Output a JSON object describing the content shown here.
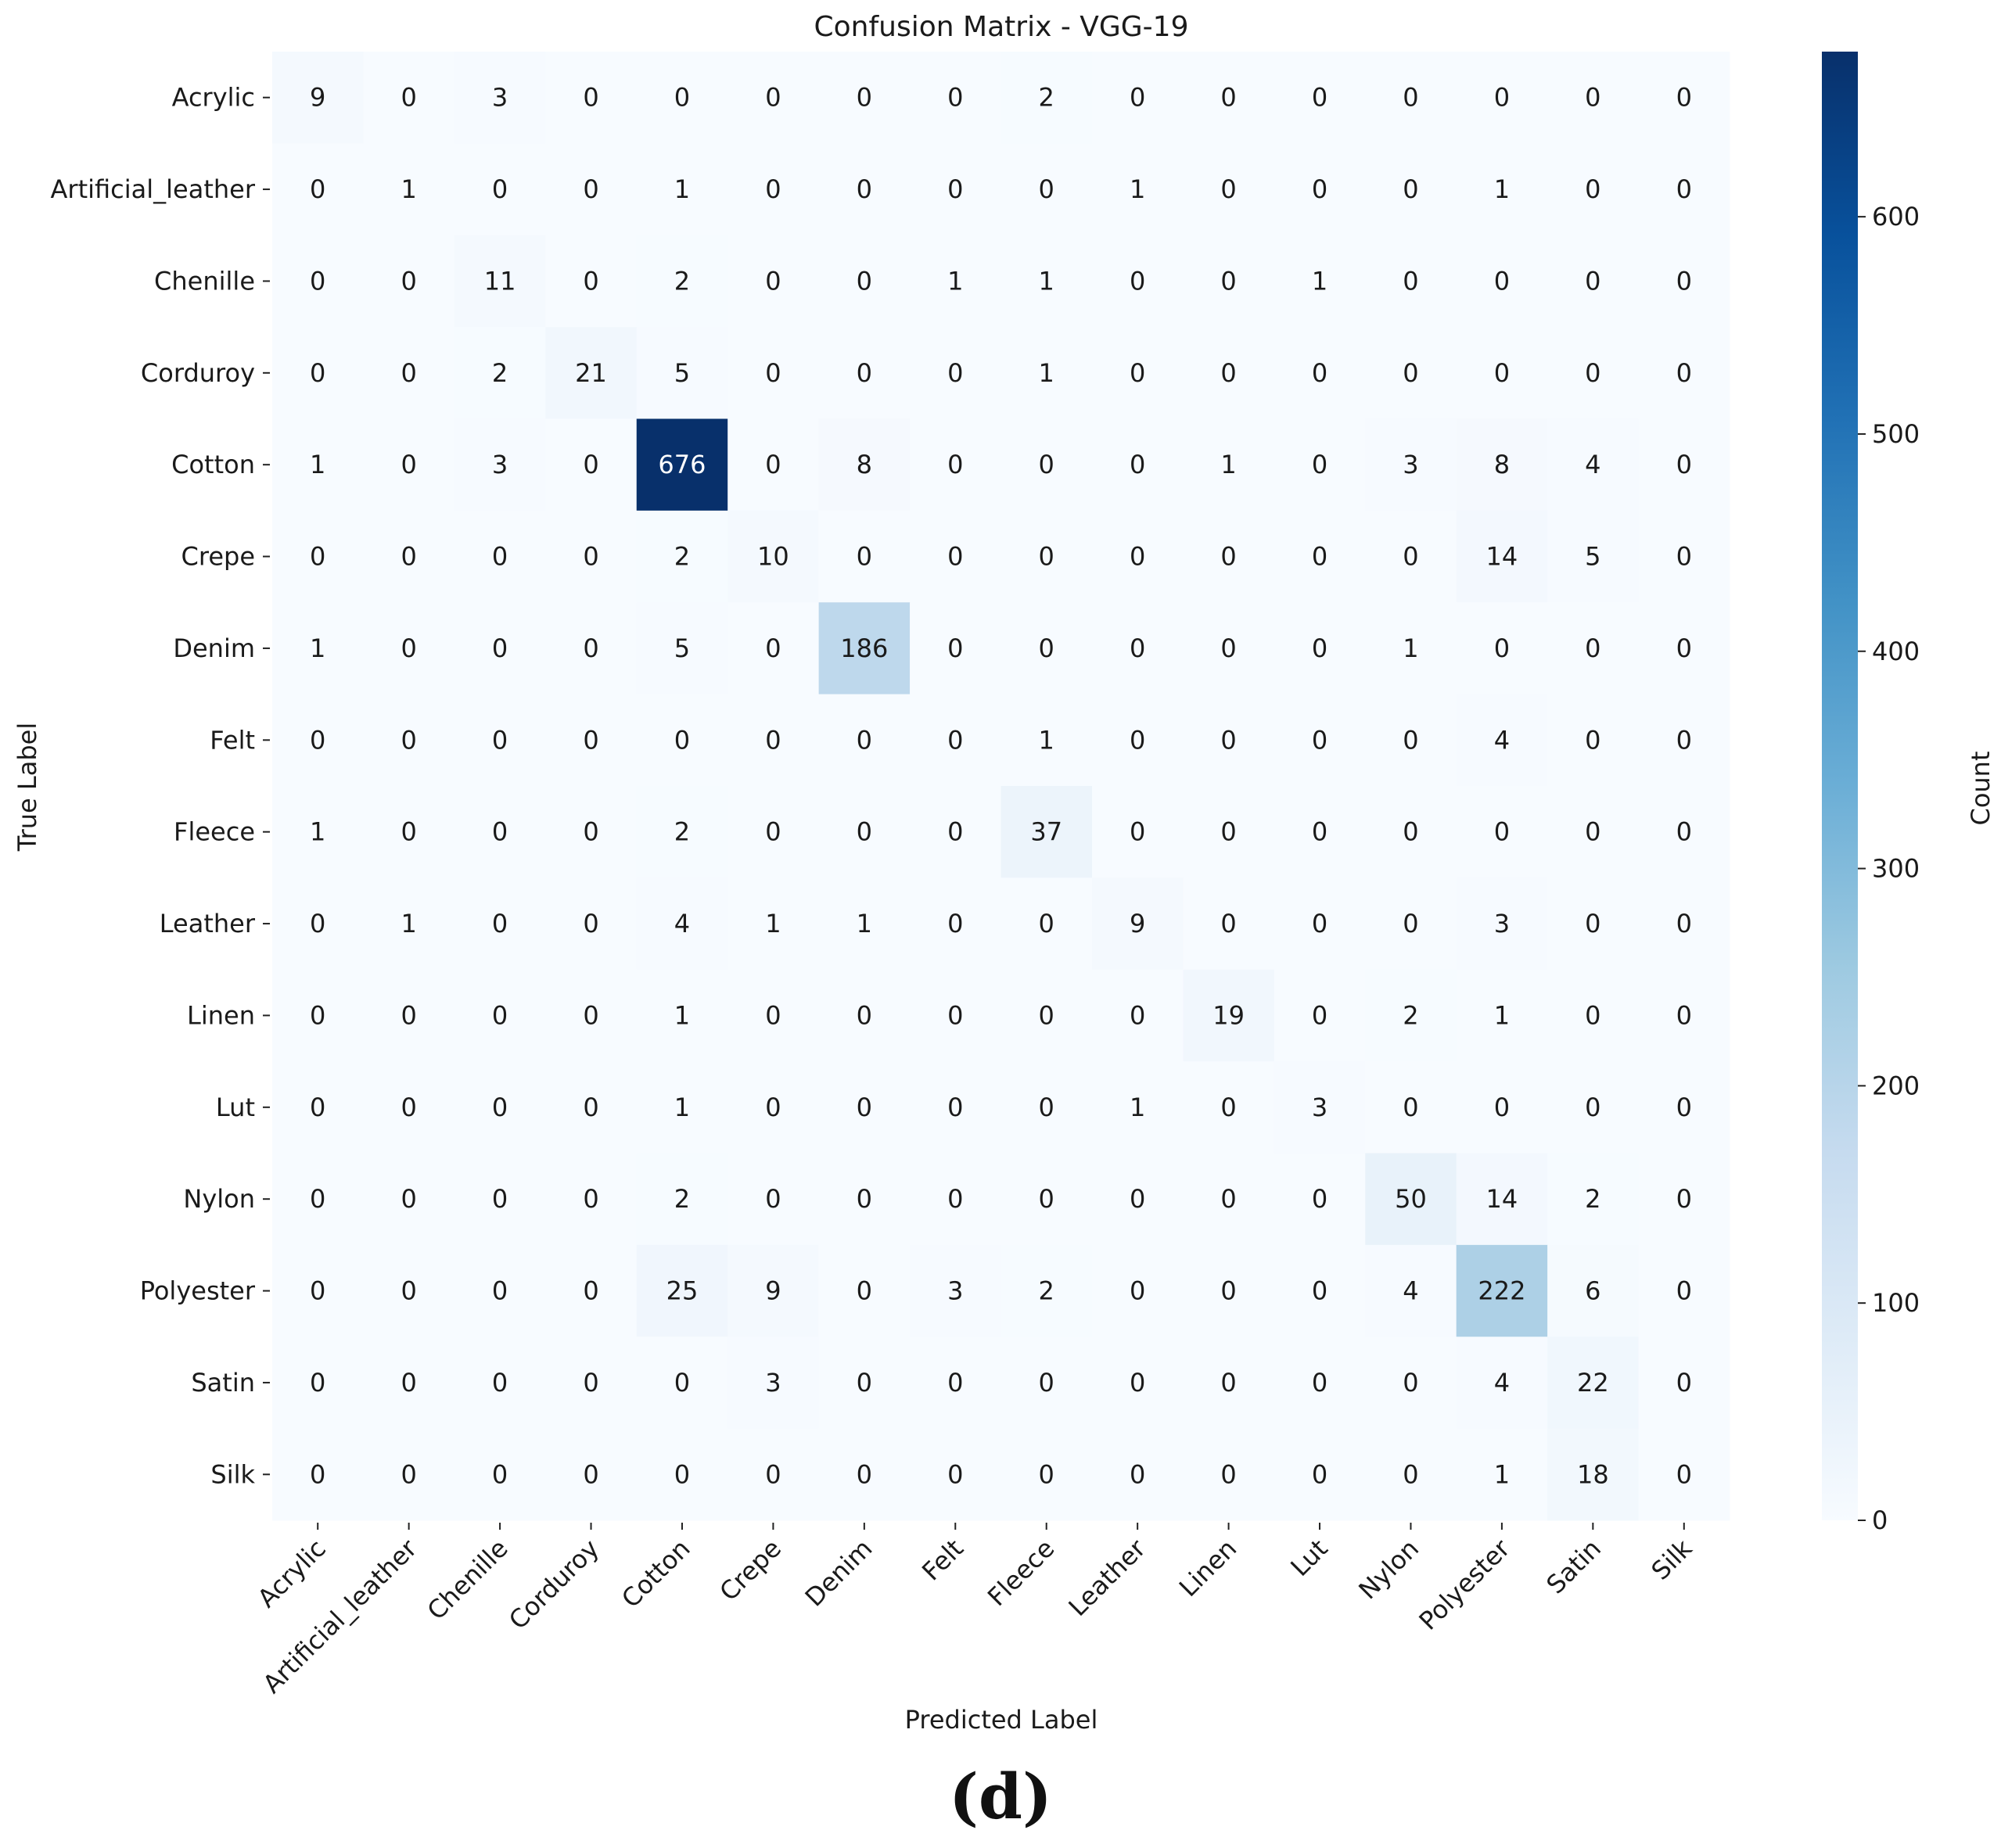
{
  "chart_data": {
    "type": "heatmap",
    "title": "Confusion Matrix - VGG-19",
    "xlabel": "Predicted Label",
    "ylabel": "True Label",
    "colorbar_label": "Count",
    "colorbar_ticks": [
      0,
      100,
      200,
      300,
      400,
      500,
      600
    ],
    "colormap": "Blues",
    "vmin": 0,
    "vmax": 676,
    "x_categories": [
      "Acrylic",
      "Artificial_leather",
      "Chenille",
      "Corduroy",
      "Cotton",
      "Crepe",
      "Denim",
      "Felt",
      "Fleece",
      "Leather",
      "Linen",
      "Lut",
      "Nylon",
      "Polyester",
      "Satin",
      "Silk"
    ],
    "y_categories": [
      "Acrylic",
      "Artificial_leather",
      "Chenille",
      "Corduroy",
      "Cotton",
      "Crepe",
      "Denim",
      "Felt",
      "Fleece",
      "Leather",
      "Linen",
      "Lut",
      "Nylon",
      "Polyester",
      "Satin",
      "Silk"
    ],
    "matrix": [
      [
        9,
        0,
        3,
        0,
        0,
        0,
        0,
        0,
        2,
        0,
        0,
        0,
        0,
        0,
        0,
        0
      ],
      [
        0,
        1,
        0,
        0,
        1,
        0,
        0,
        0,
        0,
        1,
        0,
        0,
        0,
        1,
        0,
        0
      ],
      [
        0,
        0,
        11,
        0,
        2,
        0,
        0,
        1,
        1,
        0,
        0,
        1,
        0,
        0,
        0,
        0
      ],
      [
        0,
        0,
        2,
        21,
        5,
        0,
        0,
        0,
        1,
        0,
        0,
        0,
        0,
        0,
        0,
        0
      ],
      [
        1,
        0,
        3,
        0,
        676,
        0,
        8,
        0,
        0,
        0,
        1,
        0,
        3,
        8,
        4,
        0
      ],
      [
        0,
        0,
        0,
        0,
        2,
        10,
        0,
        0,
        0,
        0,
        0,
        0,
        0,
        14,
        5,
        0
      ],
      [
        1,
        0,
        0,
        0,
        5,
        0,
        186,
        0,
        0,
        0,
        0,
        0,
        1,
        0,
        0,
        0
      ],
      [
        0,
        0,
        0,
        0,
        0,
        0,
        0,
        0,
        1,
        0,
        0,
        0,
        0,
        4,
        0,
        0
      ],
      [
        1,
        0,
        0,
        0,
        2,
        0,
        0,
        0,
        37,
        0,
        0,
        0,
        0,
        0,
        0,
        0
      ],
      [
        0,
        1,
        0,
        0,
        4,
        1,
        1,
        0,
        0,
        9,
        0,
        0,
        0,
        3,
        0,
        0
      ],
      [
        0,
        0,
        0,
        0,
        1,
        0,
        0,
        0,
        0,
        0,
        19,
        0,
        2,
        1,
        0,
        0
      ],
      [
        0,
        0,
        0,
        0,
        1,
        0,
        0,
        0,
        0,
        1,
        0,
        3,
        0,
        0,
        0,
        0
      ],
      [
        0,
        0,
        0,
        0,
        2,
        0,
        0,
        0,
        0,
        0,
        0,
        0,
        50,
        14,
        2,
        0
      ],
      [
        0,
        0,
        0,
        0,
        25,
        9,
        0,
        3,
        2,
        0,
        0,
        0,
        4,
        222,
        6,
        0
      ],
      [
        0,
        0,
        0,
        0,
        0,
        3,
        0,
        0,
        0,
        0,
        0,
        0,
        0,
        4,
        22,
        0
      ],
      [
        0,
        0,
        0,
        0,
        0,
        0,
        0,
        0,
        0,
        0,
        0,
        0,
        0,
        1,
        18,
        0
      ]
    ]
  },
  "panel_label": "(d)"
}
